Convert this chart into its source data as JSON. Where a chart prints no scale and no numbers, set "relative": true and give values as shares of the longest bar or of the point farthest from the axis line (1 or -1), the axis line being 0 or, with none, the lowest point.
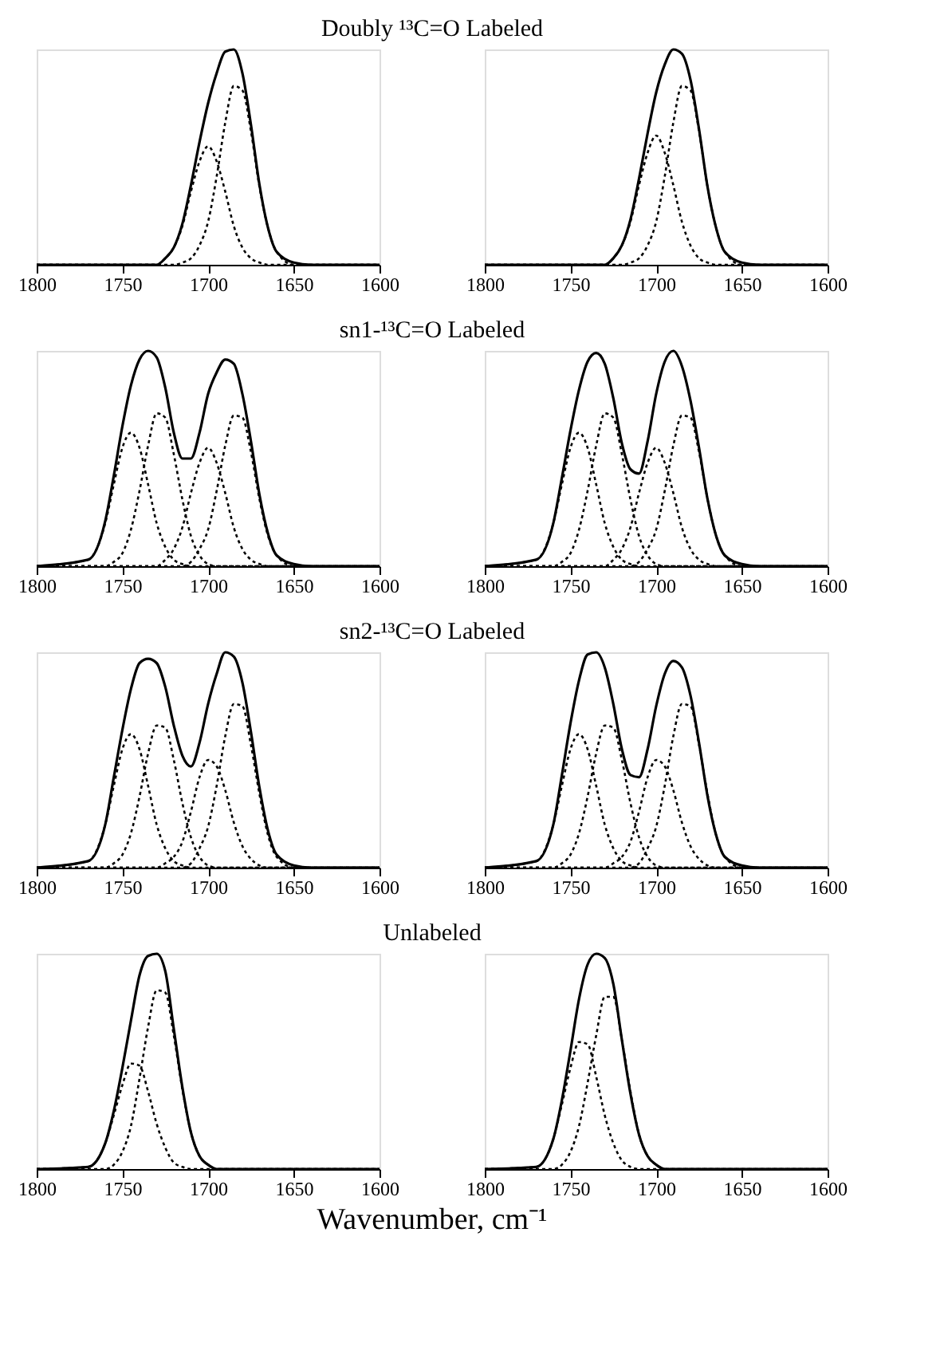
{
  "chart_data": [
    {
      "type": "line",
      "relative": true,
      "title": "Doubly ¹³C=O Labeled",
      "x": [
        1800,
        1770,
        1760,
        1755,
        1750,
        1745,
        1740,
        1735,
        1730,
        1725,
        1720,
        1715,
        1710,
        1705,
        1700,
        1695,
        1690,
        1685,
        1680,
        1675,
        1670,
        1665,
        1660,
        1650,
        1640,
        1600
      ],
      "xlim": [
        1800,
        1600
      ],
      "xticks": [
        1800,
        1750,
        1700,
        1650,
        1600
      ],
      "tick_labels": "x",
      "series": [
        {
          "color": "#000000",
          "line_style": "solid",
          "values": [
            0,
            0,
            0,
            0,
            0,
            0,
            0,
            0,
            0,
            0.03,
            0.08,
            0.19,
            0.37,
            0.57,
            0.75,
            0.89,
            0.99,
            1.0,
            0.89,
            0.65,
            0.37,
            0.17,
            0.06,
            0.01,
            0,
            0
          ]
        },
        {
          "color": "#000000",
          "line_style": "dotted",
          "values": [
            0,
            0,
            0,
            0,
            0,
            0,
            0,
            0,
            0,
            0.03,
            0.08,
            0.18,
            0.34,
            0.48,
            0.55,
            0.48,
            0.34,
            0.18,
            0.08,
            0.03,
            0.01,
            0,
            0,
            0,
            0,
            0
          ]
        },
        {
          "color": "#000000",
          "line_style": "dotted",
          "values": [
            0,
            0,
            0,
            0,
            0,
            0,
            0,
            0,
            0,
            0,
            0,
            0.01,
            0.03,
            0.09,
            0.2,
            0.41,
            0.66,
            0.83,
            0.81,
            0.62,
            0.36,
            0.17,
            0.06,
            0,
            0,
            0
          ]
        }
      ]
    },
    {
      "type": "line",
      "relative": true,
      "x": [
        1800,
        1770,
        1760,
        1755,
        1750,
        1745,
        1740,
        1735,
        1730,
        1725,
        1720,
        1715,
        1710,
        1705,
        1700,
        1695,
        1690,
        1685,
        1680,
        1675,
        1670,
        1665,
        1660,
        1650,
        1640,
        1600
      ],
      "xlim": [
        1800,
        1600
      ],
      "xticks": [
        1800,
        1750,
        1700,
        1650,
        1600
      ],
      "tick_labels": "x",
      "series": [
        {
          "color": "#000000",
          "line_style": "solid",
          "values": [
            0,
            0,
            0,
            0,
            0,
            0,
            0,
            0,
            0,
            0.03,
            0.09,
            0.21,
            0.4,
            0.61,
            0.8,
            0.93,
            1.0,
            0.98,
            0.86,
            0.63,
            0.36,
            0.17,
            0.06,
            0.01,
            0,
            0
          ]
        },
        {
          "color": "#000000",
          "line_style": "dotted",
          "values": [
            0,
            0,
            0,
            0,
            0,
            0,
            0,
            0,
            0,
            0.03,
            0.09,
            0.2,
            0.37,
            0.52,
            0.6,
            0.52,
            0.37,
            0.2,
            0.09,
            0.03,
            0.01,
            0,
            0,
            0,
            0,
            0
          ]
        },
        {
          "color": "#000000",
          "line_style": "dotted",
          "values": [
            0,
            0,
            0,
            0,
            0,
            0,
            0,
            0,
            0,
            0,
            0,
            0.01,
            0.03,
            0.09,
            0.2,
            0.41,
            0.66,
            0.83,
            0.81,
            0.62,
            0.36,
            0.17,
            0.06,
            0,
            0,
            0
          ]
        }
      ]
    },
    {
      "type": "line",
      "relative": true,
      "title": "sn1-¹³C=O Labeled",
      "x": [
        1800,
        1770,
        1760,
        1755,
        1750,
        1745,
        1740,
        1735,
        1730,
        1725,
        1720,
        1715,
        1710,
        1705,
        1700,
        1695,
        1690,
        1685,
        1680,
        1675,
        1670,
        1665,
        1660,
        1650,
        1640,
        1600
      ],
      "xlim": [
        1800,
        1600
      ],
      "xticks": [
        1800,
        1750,
        1700,
        1650,
        1600
      ],
      "tick_labels": "x",
      "series": [
        {
          "color": "#000000",
          "line_style": "solid",
          "values": [
            0,
            0.03,
            0.21,
            0.42,
            0.65,
            0.84,
            0.96,
            1.0,
            0.97,
            0.83,
            0.62,
            0.5,
            0.5,
            0.62,
            0.8,
            0.9,
            0.96,
            0.94,
            0.8,
            0.58,
            0.33,
            0.15,
            0.05,
            0.01,
            0,
            0
          ]
        },
        {
          "color": "#000000",
          "line_style": "dotted",
          "values": [
            0,
            0.03,
            0.2,
            0.38,
            0.55,
            0.62,
            0.55,
            0.38,
            0.2,
            0.09,
            0.03,
            0.01,
            0,
            0,
            0,
            0,
            0,
            0,
            0,
            0,
            0,
            0,
            0,
            0,
            0,
            0
          ]
        },
        {
          "color": "#000000",
          "line_style": "dotted",
          "values": [
            0,
            0,
            0,
            0.02,
            0.06,
            0.17,
            0.35,
            0.56,
            0.71,
            0.69,
            0.52,
            0.31,
            0.14,
            0.05,
            0.01,
            0,
            0,
            0,
            0,
            0,
            0,
            0,
            0,
            0,
            0,
            0
          ]
        },
        {
          "color": "#000000",
          "line_style": "dotted",
          "values": [
            0,
            0,
            0,
            0,
            0,
            0,
            0,
            0,
            0,
            0.03,
            0.08,
            0.18,
            0.34,
            0.48,
            0.55,
            0.48,
            0.34,
            0.18,
            0.08,
            0.03,
            0.01,
            0,
            0,
            0,
            0,
            0
          ]
        },
        {
          "color": "#000000",
          "line_style": "dotted",
          "values": [
            0,
            0,
            0,
            0,
            0,
            0,
            0,
            0,
            0,
            0,
            0,
            0,
            0.02,
            0.08,
            0.17,
            0.35,
            0.56,
            0.7,
            0.69,
            0.53,
            0.31,
            0.14,
            0.05,
            0,
            0,
            0
          ]
        }
      ]
    },
    {
      "type": "line",
      "relative": true,
      "x": [
        1800,
        1770,
        1760,
        1755,
        1750,
        1745,
        1740,
        1735,
        1730,
        1725,
        1720,
        1715,
        1710,
        1705,
        1700,
        1695,
        1690,
        1685,
        1680,
        1675,
        1670,
        1665,
        1660,
        1650,
        1640,
        1600
      ],
      "xlim": [
        1800,
        1600
      ],
      "xticks": [
        1800,
        1750,
        1700,
        1650,
        1600
      ],
      "tick_labels": "x",
      "series": [
        {
          "color": "#000000",
          "line_style": "solid",
          "values": [
            0,
            0.03,
            0.2,
            0.41,
            0.63,
            0.82,
            0.95,
            0.99,
            0.94,
            0.78,
            0.57,
            0.45,
            0.43,
            0.58,
            0.8,
            0.95,
            1.0,
            0.93,
            0.77,
            0.55,
            0.31,
            0.14,
            0.05,
            0.01,
            0,
            0
          ]
        },
        {
          "color": "#000000",
          "line_style": "dotted",
          "values": [
            0,
            0.03,
            0.2,
            0.38,
            0.55,
            0.62,
            0.55,
            0.38,
            0.2,
            0.09,
            0.03,
            0.01,
            0,
            0,
            0,
            0,
            0,
            0,
            0,
            0,
            0,
            0,
            0,
            0,
            0,
            0
          ]
        },
        {
          "color": "#000000",
          "line_style": "dotted",
          "values": [
            0,
            0,
            0,
            0.02,
            0.06,
            0.17,
            0.35,
            0.56,
            0.71,
            0.69,
            0.52,
            0.31,
            0.14,
            0.05,
            0.01,
            0,
            0,
            0,
            0,
            0,
            0,
            0,
            0,
            0,
            0,
            0
          ]
        },
        {
          "color": "#000000",
          "line_style": "dotted",
          "values": [
            0,
            0,
            0,
            0,
            0,
            0,
            0,
            0,
            0,
            0.03,
            0.08,
            0.18,
            0.34,
            0.48,
            0.55,
            0.48,
            0.34,
            0.18,
            0.08,
            0.03,
            0.01,
            0,
            0,
            0,
            0,
            0
          ]
        },
        {
          "color": "#000000",
          "line_style": "dotted",
          "values": [
            0,
            0,
            0,
            0,
            0,
            0,
            0,
            0,
            0,
            0,
            0,
            0,
            0.02,
            0.08,
            0.17,
            0.35,
            0.56,
            0.7,
            0.69,
            0.53,
            0.31,
            0.14,
            0.05,
            0,
            0,
            0
          ]
        }
      ]
    },
    {
      "type": "line",
      "relative": true,
      "title": "sn2-¹³C=O Labeled",
      "x": [
        1800,
        1770,
        1760,
        1755,
        1750,
        1745,
        1740,
        1735,
        1730,
        1725,
        1720,
        1715,
        1710,
        1705,
        1700,
        1695,
        1690,
        1685,
        1680,
        1675,
        1670,
        1665,
        1660,
        1650,
        1640,
        1600
      ],
      "xlim": [
        1800,
        1600
      ],
      "xticks": [
        1800,
        1750,
        1700,
        1650,
        1600
      ],
      "tick_labels": "x",
      "series": [
        {
          "color": "#000000",
          "line_style": "solid",
          "values": [
            0,
            0.03,
            0.2,
            0.42,
            0.64,
            0.83,
            0.95,
            0.97,
            0.95,
            0.84,
            0.66,
            0.52,
            0.47,
            0.58,
            0.76,
            0.9,
            1.0,
            0.98,
            0.86,
            0.63,
            0.37,
            0.17,
            0.06,
            0.01,
            0,
            0
          ]
        },
        {
          "color": "#000000",
          "line_style": "dotted",
          "values": [
            0,
            0.03,
            0.2,
            0.38,
            0.55,
            0.62,
            0.55,
            0.38,
            0.2,
            0.09,
            0.03,
            0.01,
            0,
            0,
            0,
            0,
            0,
            0,
            0,
            0,
            0,
            0,
            0,
            0,
            0,
            0
          ]
        },
        {
          "color": "#000000",
          "line_style": "dotted",
          "values": [
            0,
            0,
            0,
            0.02,
            0.06,
            0.16,
            0.33,
            0.53,
            0.66,
            0.65,
            0.5,
            0.3,
            0.14,
            0.05,
            0.01,
            0,
            0,
            0,
            0,
            0,
            0,
            0,
            0,
            0,
            0,
            0
          ]
        },
        {
          "color": "#000000",
          "line_style": "dotted",
          "values": [
            0,
            0,
            0,
            0,
            0,
            0,
            0,
            0,
            0,
            0.02,
            0.05,
            0.12,
            0.26,
            0.42,
            0.5,
            0.47,
            0.36,
            0.21,
            0.1,
            0.04,
            0.01,
            0,
            0,
            0,
            0,
            0
          ]
        },
        {
          "color": "#000000",
          "line_style": "dotted",
          "values": [
            0,
            0,
            0,
            0,
            0,
            0,
            0,
            0,
            0,
            0,
            0,
            0,
            0.02,
            0.09,
            0.19,
            0.38,
            0.61,
            0.76,
            0.75,
            0.57,
            0.34,
            0.15,
            0.05,
            0,
            0,
            0
          ]
        }
      ]
    },
    {
      "type": "line",
      "relative": true,
      "x": [
        1800,
        1770,
        1760,
        1755,
        1750,
        1745,
        1740,
        1735,
        1730,
        1725,
        1720,
        1715,
        1710,
        1705,
        1700,
        1695,
        1690,
        1685,
        1680,
        1675,
        1670,
        1665,
        1660,
        1650,
        1640,
        1600
      ],
      "xlim": [
        1800,
        1600
      ],
      "xticks": [
        1800,
        1750,
        1700,
        1650,
        1600
      ],
      "tick_labels": "x",
      "series": [
        {
          "color": "#000000",
          "line_style": "solid",
          "values": [
            0,
            0.03,
            0.2,
            0.43,
            0.67,
            0.87,
            0.99,
            1.0,
            0.93,
            0.76,
            0.55,
            0.43,
            0.42,
            0.55,
            0.75,
            0.9,
            0.96,
            0.93,
            0.8,
            0.58,
            0.33,
            0.15,
            0.05,
            0.01,
            0,
            0
          ]
        },
        {
          "color": "#000000",
          "line_style": "dotted",
          "values": [
            0,
            0.03,
            0.2,
            0.38,
            0.55,
            0.62,
            0.55,
            0.38,
            0.2,
            0.09,
            0.03,
            0.01,
            0,
            0,
            0,
            0,
            0,
            0,
            0,
            0,
            0,
            0,
            0,
            0,
            0,
            0
          ]
        },
        {
          "color": "#000000",
          "line_style": "dotted",
          "values": [
            0,
            0,
            0,
            0.02,
            0.06,
            0.16,
            0.33,
            0.53,
            0.66,
            0.65,
            0.5,
            0.3,
            0.14,
            0.05,
            0.01,
            0,
            0,
            0,
            0,
            0,
            0,
            0,
            0,
            0,
            0,
            0
          ]
        },
        {
          "color": "#000000",
          "line_style": "dotted",
          "values": [
            0,
            0,
            0,
            0,
            0,
            0,
            0,
            0,
            0,
            0.02,
            0.05,
            0.12,
            0.26,
            0.42,
            0.5,
            0.47,
            0.36,
            0.21,
            0.1,
            0.04,
            0.01,
            0,
            0,
            0,
            0,
            0
          ]
        },
        {
          "color": "#000000",
          "line_style": "dotted",
          "values": [
            0,
            0,
            0,
            0,
            0,
            0,
            0,
            0,
            0,
            0,
            0,
            0,
            0.02,
            0.09,
            0.19,
            0.38,
            0.61,
            0.76,
            0.75,
            0.57,
            0.34,
            0.15,
            0.05,
            0,
            0,
            0
          ]
        }
      ]
    },
    {
      "type": "line",
      "relative": true,
      "title": "Unlabeled",
      "xlabel": "Wavenumber, cm⁻¹",
      "x": [
        1800,
        1770,
        1760,
        1755,
        1750,
        1745,
        1740,
        1735,
        1730,
        1725,
        1720,
        1715,
        1710,
        1705,
        1700,
        1695,
        1690,
        1685,
        1680,
        1675,
        1670,
        1665,
        1660,
        1650,
        1640,
        1600
      ],
      "xlim": [
        1800,
        1600
      ],
      "xticks": [
        1800,
        1750,
        1700,
        1650,
        1600
      ],
      "tick_labels": "x",
      "series": [
        {
          "color": "#000000",
          "line_style": "solid",
          "values": [
            0,
            0.01,
            0.12,
            0.27,
            0.47,
            0.69,
            0.9,
            0.99,
            1.0,
            0.92,
            0.65,
            0.38,
            0.17,
            0.06,
            0.02,
            0,
            0,
            0,
            0,
            0,
            0,
            0,
            0,
            0,
            0,
            0
          ]
        },
        {
          "color": "#000000",
          "line_style": "dotted",
          "values": [
            0,
            0.01,
            0.12,
            0.25,
            0.39,
            0.49,
            0.48,
            0.36,
            0.21,
            0.1,
            0.03,
            0.01,
            0,
            0,
            0,
            0,
            0,
            0,
            0,
            0,
            0,
            0,
            0,
            0,
            0,
            0
          ]
        },
        {
          "color": "#000000",
          "line_style": "dotted",
          "values": [
            0,
            0,
            0,
            0.02,
            0.08,
            0.2,
            0.42,
            0.66,
            0.83,
            0.82,
            0.62,
            0.37,
            0.17,
            0.06,
            0.02,
            0,
            0,
            0,
            0,
            0,
            0,
            0,
            0,
            0,
            0,
            0
          ]
        }
      ]
    },
    {
      "type": "line",
      "relative": true,
      "x": [
        1800,
        1770,
        1760,
        1755,
        1750,
        1745,
        1740,
        1735,
        1730,
        1725,
        1720,
        1715,
        1710,
        1705,
        1700,
        1695,
        1690,
        1685,
        1680,
        1675,
        1670,
        1665,
        1660,
        1650,
        1640,
        1600
      ],
      "xlim": [
        1800,
        1600
      ],
      "xticks": [
        1800,
        1750,
        1700,
        1650,
        1600
      ],
      "tick_labels": "x",
      "series": [
        {
          "color": "#000000",
          "line_style": "solid",
          "values": [
            0,
            0.01,
            0.14,
            0.32,
            0.55,
            0.79,
            0.95,
            1.0,
            0.98,
            0.86,
            0.6,
            0.35,
            0.16,
            0.06,
            0.02,
            0,
            0,
            0,
            0,
            0,
            0,
            0,
            0,
            0,
            0,
            0
          ]
        },
        {
          "color": "#000000",
          "line_style": "dotted",
          "values": [
            0,
            0.01,
            0.14,
            0.3,
            0.47,
            0.59,
            0.58,
            0.43,
            0.25,
            0.12,
            0.04,
            0.01,
            0,
            0,
            0,
            0,
            0,
            0,
            0,
            0,
            0,
            0,
            0,
            0,
            0,
            0
          ]
        },
        {
          "color": "#000000",
          "line_style": "dotted",
          "values": [
            0,
            0,
            0,
            0.02,
            0.08,
            0.2,
            0.4,
            0.62,
            0.8,
            0.8,
            0.6,
            0.36,
            0.16,
            0.06,
            0.02,
            0,
            0,
            0,
            0,
            0,
            0,
            0,
            0,
            0,
            0,
            0
          ]
        }
      ]
    }
  ]
}
